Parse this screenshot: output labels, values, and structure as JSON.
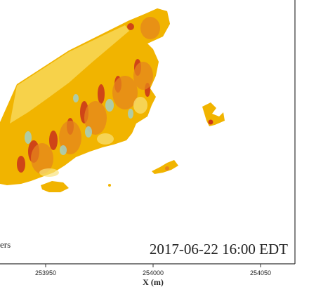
{
  "chart_data": {
    "type": "heatmap",
    "xlabel": "X (m)",
    "x_ticks": [
      253950,
      254000,
      254050
    ],
    "x_tick_labels": [
      "253950",
      "254000",
      "254050"
    ],
    "annotation": "2017-06-22 16:00 EDT",
    "legend_fragment": "ers",
    "colors": {
      "frame": "#333333",
      "base": "#f1b400",
      "light": "#f7d24a",
      "pale": "#f9e27a",
      "orange": "#e6861c",
      "red": "#cc3a1a",
      "cyan": "#9fd3d0",
      "label": "#222222"
    }
  }
}
